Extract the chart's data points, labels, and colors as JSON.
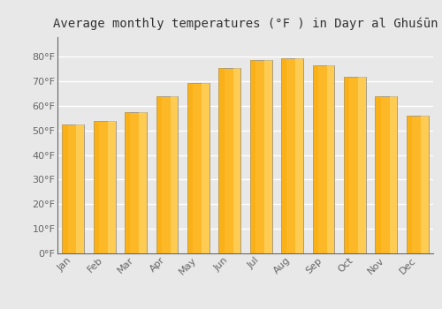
{
  "title": "Average monthly temperatures (°F ) in Dayr al Ghuśūn",
  "months": [
    "Jan",
    "Feb",
    "Mar",
    "Apr",
    "May",
    "Jun",
    "Jul",
    "Aug",
    "Sep",
    "Oct",
    "Nov",
    "Dec"
  ],
  "values": [
    52.5,
    54.0,
    57.5,
    64.0,
    69.5,
    75.5,
    78.5,
    79.5,
    76.5,
    72.0,
    64.0,
    56.0
  ],
  "bar_color_main": "#FDB827",
  "bar_color_left": "#F5A800",
  "bar_color_right": "#FDD060",
  "bar_edge_color": "#888888",
  "ylim": [
    0,
    88
  ],
  "yticks": [
    0,
    10,
    20,
    30,
    40,
    50,
    60,
    70,
    80
  ],
  "ytick_labels": [
    "0°F",
    "10°F",
    "20°F",
    "30°F",
    "40°F",
    "50°F",
    "60°F",
    "70°F",
    "80°F"
  ],
  "background_color": "#e8e8e8",
  "plot_bg_color": "#e8e8e8",
  "grid_color": "#ffffff",
  "title_fontsize": 10,
  "tick_fontsize": 8,
  "title_color": "#333333",
  "tick_color": "#666666"
}
